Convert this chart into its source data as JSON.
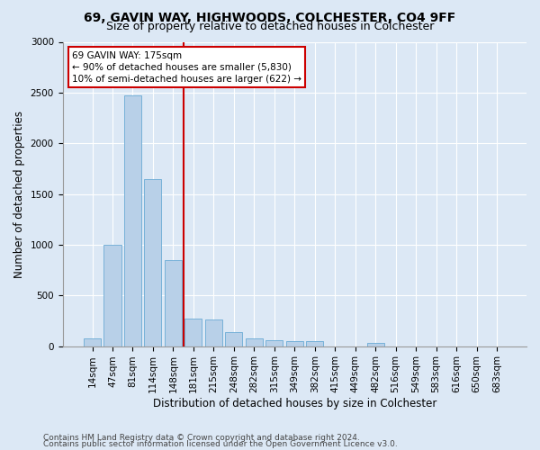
{
  "title1": "69, GAVIN WAY, HIGHWOODS, COLCHESTER, CO4 9FF",
  "title2": "Size of property relative to detached houses in Colchester",
  "xlabel": "Distribution of detached houses by size in Colchester",
  "ylabel": "Number of detached properties",
  "categories": [
    "14sqm",
    "47sqm",
    "81sqm",
    "114sqm",
    "148sqm",
    "181sqm",
    "215sqm",
    "248sqm",
    "282sqm",
    "315sqm",
    "349sqm",
    "382sqm",
    "415sqm",
    "449sqm",
    "482sqm",
    "516sqm",
    "549sqm",
    "583sqm",
    "616sqm",
    "650sqm",
    "683sqm"
  ],
  "values": [
    75,
    1000,
    2470,
    1650,
    850,
    270,
    265,
    135,
    75,
    55,
    50,
    50,
    0,
    0,
    30,
    0,
    0,
    0,
    0,
    0,
    0
  ],
  "bar_color": "#b8d0e8",
  "bar_edge_color": "#6aaad4",
  "vline_color": "#cc0000",
  "vline_x_index": 4.5,
  "annotation_text": "69 GAVIN WAY: 175sqm\n← 90% of detached houses are smaller (5,830)\n10% of semi-detached houses are larger (622) →",
  "annotation_box_facecolor": "#ffffff",
  "annotation_box_edgecolor": "#cc0000",
  "bg_color": "#dce8f5",
  "plot_bg_color": "#dce8f5",
  "ylim": [
    0,
    3000
  ],
  "yticks": [
    0,
    500,
    1000,
    1500,
    2000,
    2500,
    3000
  ],
  "footer1": "Contains HM Land Registry data © Crown copyright and database right 2024.",
  "footer2": "Contains public sector information licensed under the Open Government Licence v3.0.",
  "title1_fontsize": 10,
  "title2_fontsize": 9,
  "xlabel_fontsize": 8.5,
  "ylabel_fontsize": 8.5,
  "tick_fontsize": 7.5,
  "annotation_fontsize": 7.5,
  "footer_fontsize": 6.5
}
